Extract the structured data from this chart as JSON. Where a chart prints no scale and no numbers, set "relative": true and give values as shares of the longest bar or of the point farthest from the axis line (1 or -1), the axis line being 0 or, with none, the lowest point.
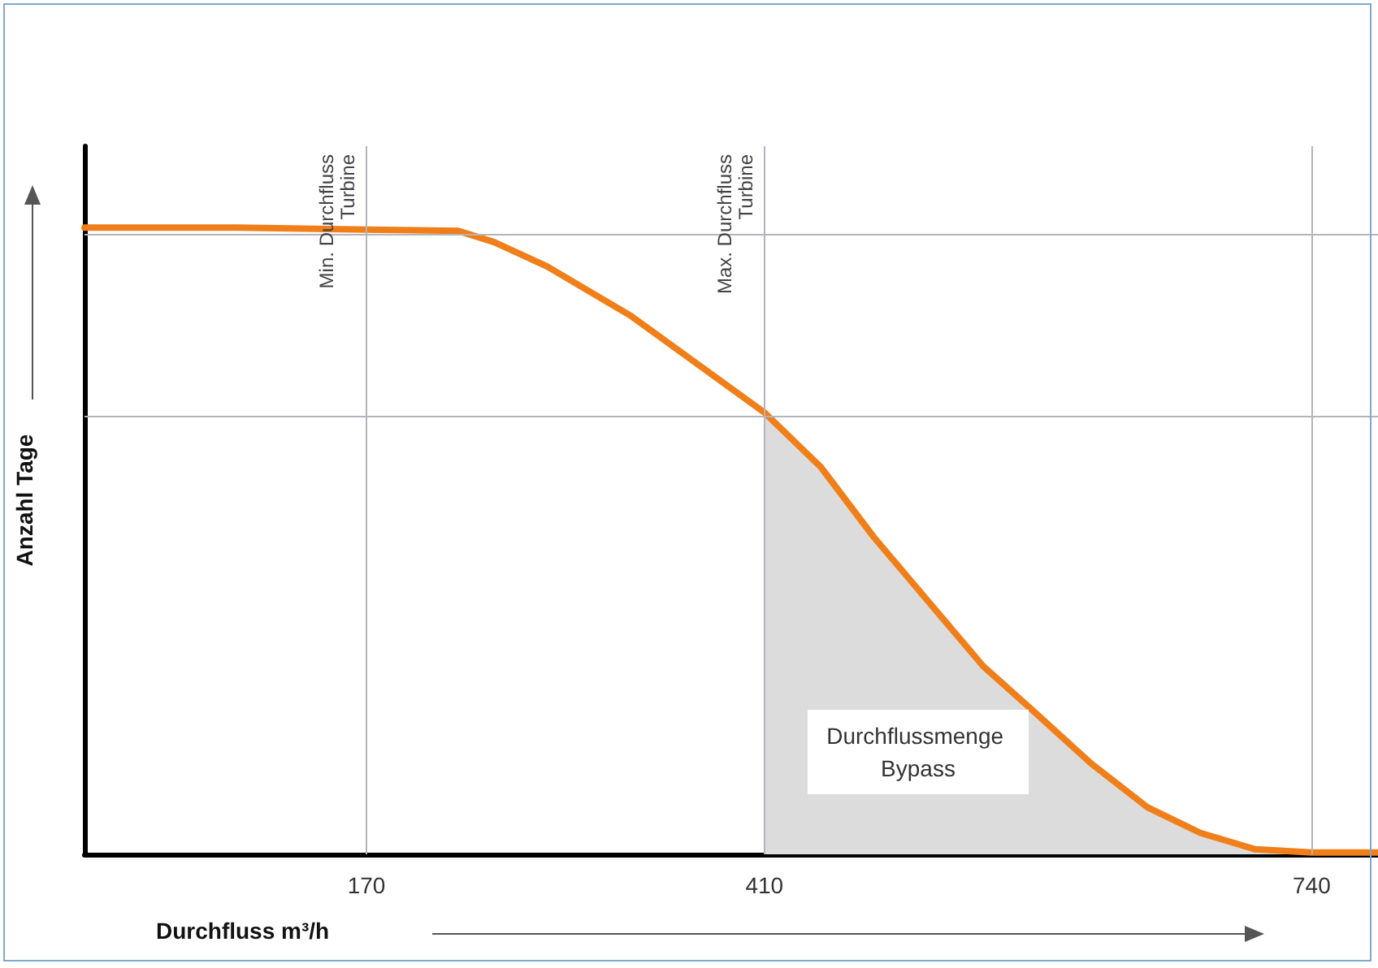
{
  "chart_data": {
    "type": "line",
    "relative": true,
    "xlabel": "Durchfluss m³/h",
    "ylabel": "Anzahl Tage",
    "xlim": [
      0,
      780
    ],
    "xticks": [
      170,
      410,
      740
    ],
    "tick_labels": "x",
    "grid": false,
    "marker": "none",
    "line_style": "solid",
    "series": [
      {
        "type": "area",
        "color": "#dcdcdc",
        "x": [
          410,
          444,
          476,
          509,
          542,
          575,
          607,
          641,
          673,
          706,
          740
        ],
        "values": [
          0.705,
          0.618,
          0.506,
          0.403,
          0.3,
          0.222,
          0.145,
          0.075,
          0.034,
          0.008,
          0.003
        ]
      },
      {
        "color": "#f07f1a",
        "x": [
          0,
          92,
          170,
          225,
          247,
          279,
          329,
          410,
          444,
          476,
          509,
          542,
          575,
          607,
          641,
          673,
          706,
          740,
          780
        ],
        "values": [
          1,
          1,
          0.997,
          0.995,
          0.977,
          0.938,
          0.86,
          0.705,
          0.618,
          0.506,
          0.403,
          0.3,
          0.222,
          0.145,
          0.075,
          0.034,
          0.008,
          0.003,
          0.003
        ]
      }
    ],
    "ref_lines": [
      {
        "axis": "x",
        "value": 170,
        "label": "Min. Durchfluss Turbine",
        "color": "#b4b4bc"
      },
      {
        "axis": "x",
        "value": 410,
        "label": "Max. Durchfluss Turbine",
        "color": "#b4b4bc"
      },
      {
        "axis": "x",
        "value": 740,
        "label": null,
        "color": "#b4b4bc"
      },
      {
        "axis": "y",
        "value": 0.99,
        "label": null,
        "color": "#b4b4bc"
      },
      {
        "axis": "y",
        "value": 0.7,
        "label": null,
        "color": "#b4b4bc"
      }
    ],
    "annotations": [
      "Durchflussmenge Bypass"
    ]
  }
}
